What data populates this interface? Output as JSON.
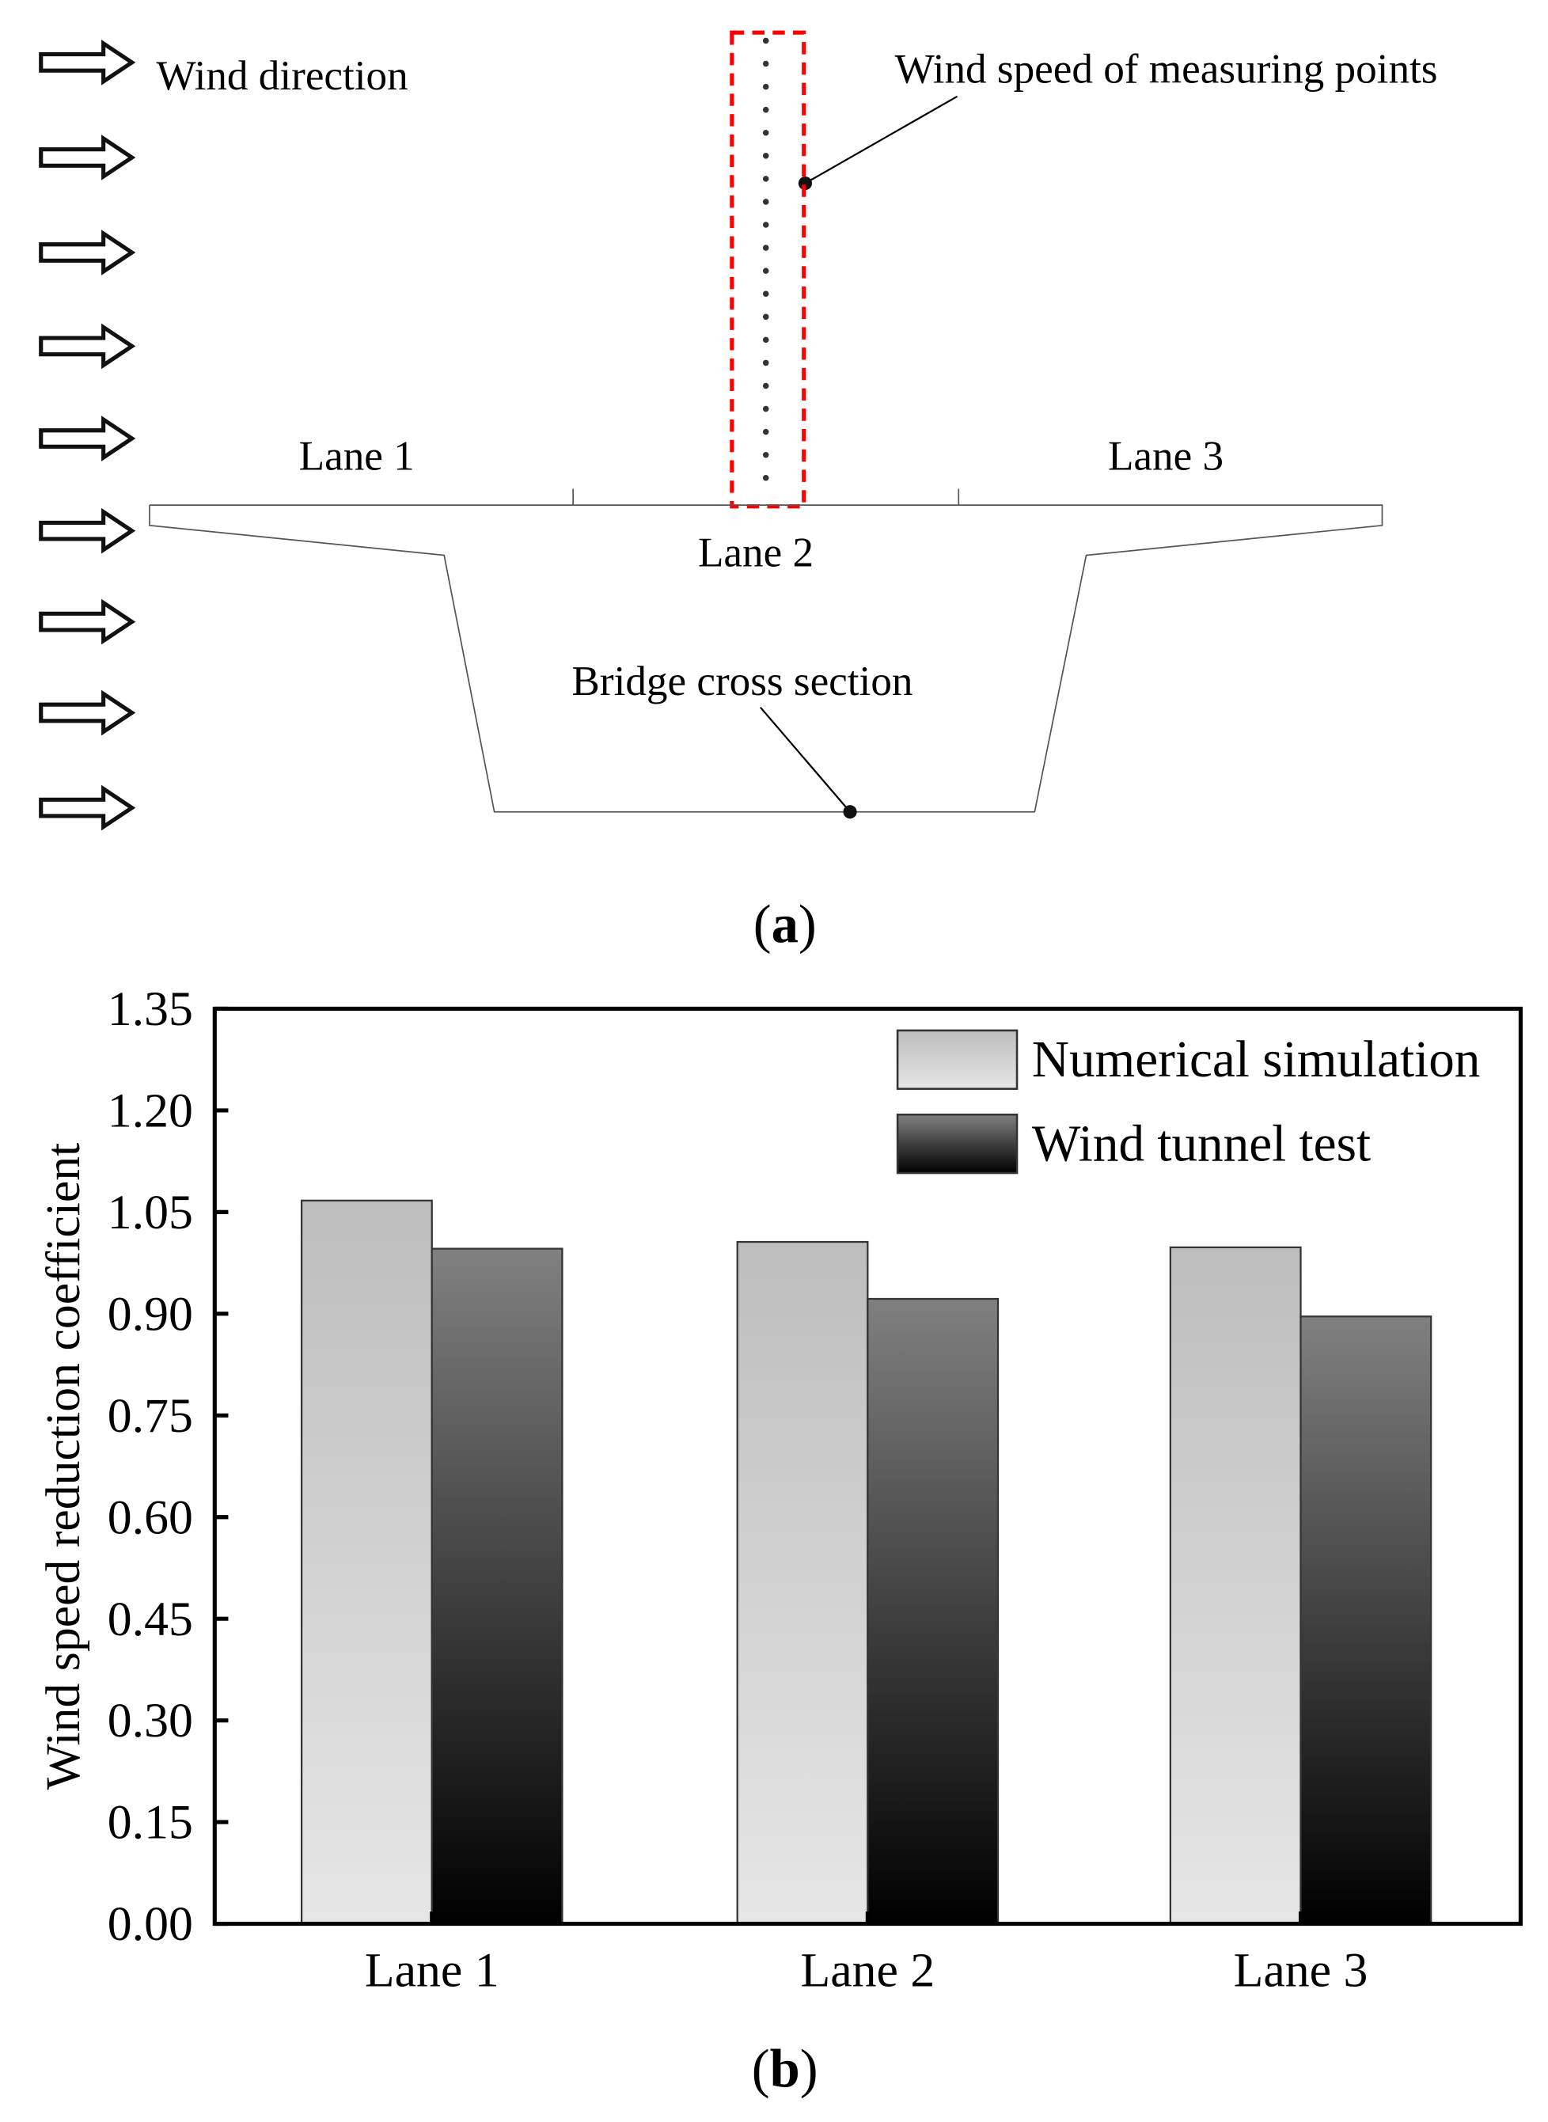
{
  "diagram": {
    "wind_direction_label": "Wind direction",
    "measuring_points_label": "Wind speed of measuring points",
    "lane1_label": "Lane 1",
    "lane2_label": "Lane 2",
    "lane3_label": "Lane 3",
    "cross_section_label": "Bridge cross section",
    "panel_label": "a",
    "highlight_color": "#ff0000",
    "arrow_count": 9,
    "measuring_point_count": 20
  },
  "chart_data": {
    "type": "bar",
    "panel_label": "b",
    "title": "",
    "xlabel": "",
    "ylabel": "Wind speed reduction coefficient",
    "categories": [
      "Lane 1",
      "Lane 2",
      "Lane 3"
    ],
    "series": [
      {
        "name": "Numerical simulation",
        "values": [
          1.067,
          1.006,
          0.998
        ],
        "color_top": "#bdbdbd",
        "color_bottom": "#e6e6e6"
      },
      {
        "name": "Wind tunnel test",
        "values": [
          0.996,
          0.922,
          0.896
        ],
        "color_top": "#808080",
        "color_bottom": "#000000"
      }
    ],
    "ylim": [
      0,
      1.35
    ],
    "yticks": [
      "0.00",
      "0.15",
      "0.30",
      "0.45",
      "0.60",
      "0.75",
      "0.90",
      "1.05",
      "1.20",
      "1.35"
    ],
    "grid": false,
    "legend_position": "top-right"
  }
}
